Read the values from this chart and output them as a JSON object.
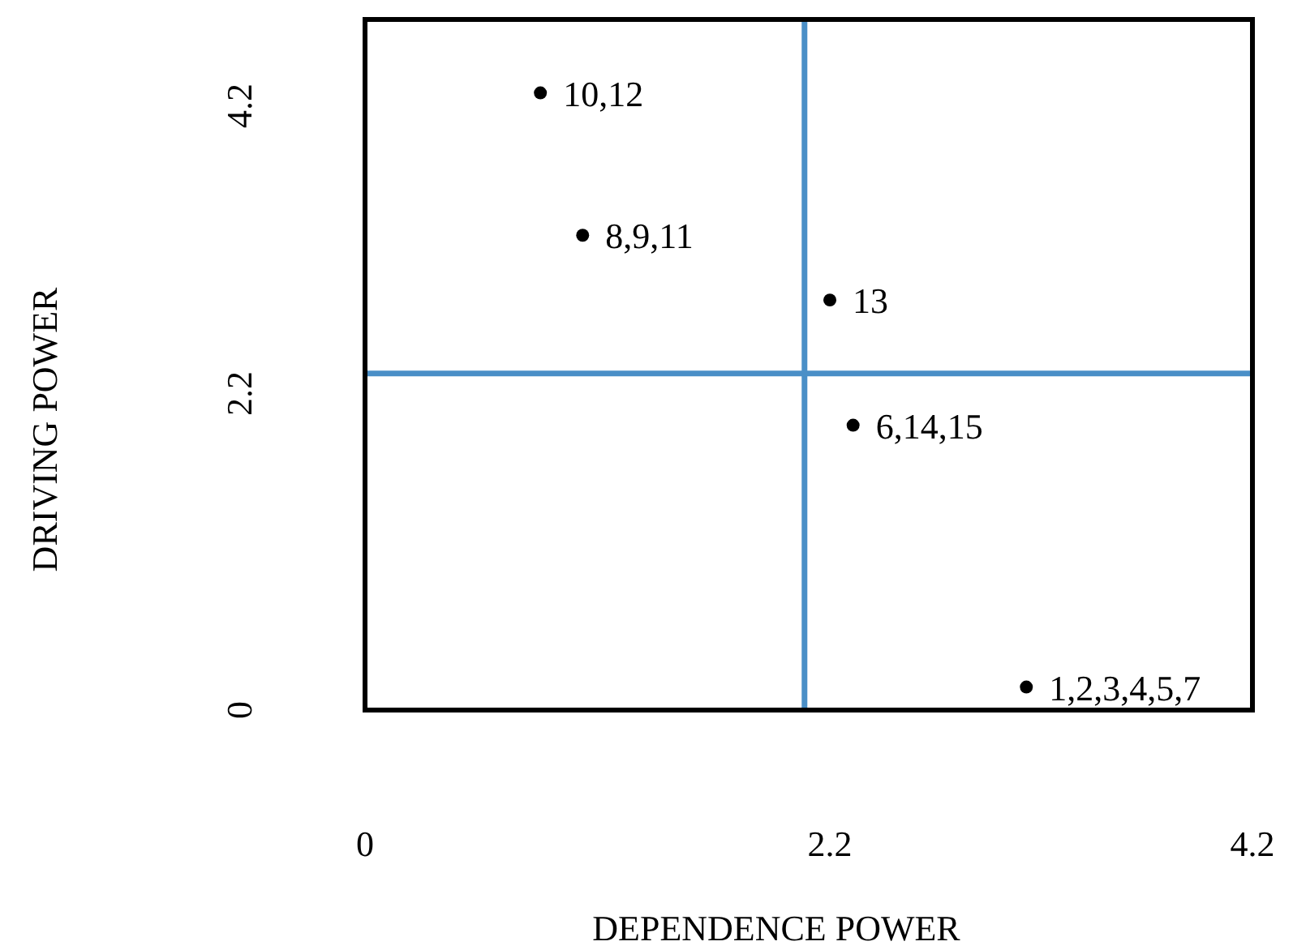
{
  "chart_data": {
    "type": "scatter",
    "xlabel": "DEPENDENCE POWER",
    "ylabel": "DRIVING POWER",
    "x": [
      0.83,
      1.03,
      2.2,
      2.31,
      3.13
    ],
    "series": [
      {
        "color": "#000000",
        "values": [
          4.29,
          3.3,
          2.85,
          1.98,
          0.16
        ]
      }
    ],
    "xlim": [
      0,
      4.2
    ],
    "ylim": [
      0,
      4.8
    ],
    "xticks": [
      0,
      2.2,
      4.2
    ],
    "yticks": [
      0,
      2.2,
      4.2
    ],
    "grid": false,
    "marker": "circle",
    "ref_lines": [
      {
        "axis": "x",
        "value": 2.08,
        "color": "#4a8fc7"
      },
      {
        "axis": "y",
        "value": 2.34,
        "color": "#4a8fc7"
      }
    ],
    "annotations": [
      {
        "text": "10,12",
        "x": 0.83,
        "y": 4.29
      },
      {
        "text": "8,9,11",
        "x": 1.03,
        "y": 3.3
      },
      {
        "text": "13",
        "x": 2.2,
        "y": 2.85
      },
      {
        "text": "6,14,15",
        "x": 2.31,
        "y": 1.98
      },
      {
        "text": "1,2,3,4,5,7",
        "x": 3.13,
        "y": 0.16
      }
    ]
  }
}
